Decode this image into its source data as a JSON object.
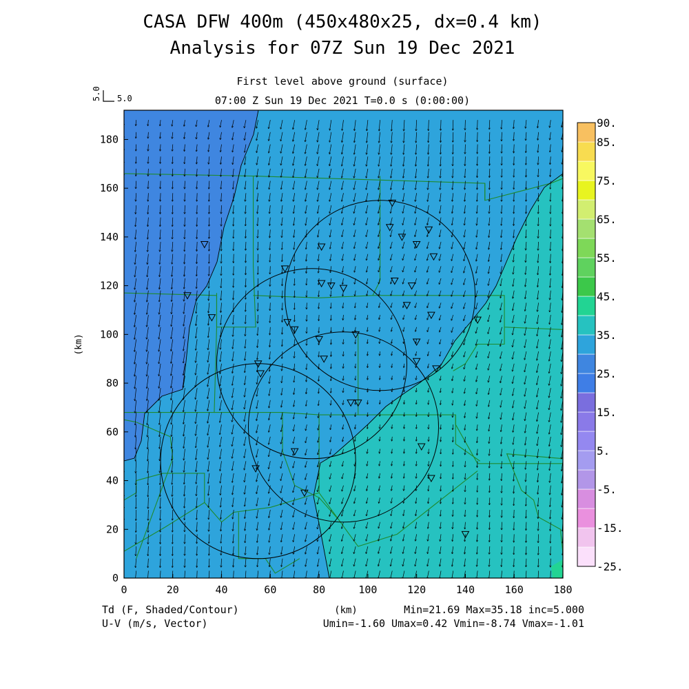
{
  "header": {
    "title_line1": "CASA DFW 400m (450x480x25, dx=0.4 km)",
    "title_line2": "Analysis for 07Z Sun 19 Dec 2021",
    "level_label": "First level above ground (surface)",
    "time_label": "07:00 Z Sun 19 Dec 2021    T=0.0 s (0:00:00)",
    "vector_scale_rotated": "5.0",
    "vector_scale_label": "5.0"
  },
  "footer": {
    "field_label": "Td (F, Shaded/Contour)",
    "vector_label": "U-V (m/s, Vector)",
    "x_unit": "(km)",
    "stats_line1": "Min=21.69 Max=35.18 inc=5.000",
    "stats_line2": "Umin=-1.60 Umax=0.42 Vmin=-8.74 Vmax=-1.01"
  },
  "colors": {
    "band_20_25": "#3f86e0",
    "band_25_30": "#2ea4dc",
    "band_30_35": "#26c2c0",
    "band_35_40": "#22d493",
    "boundary": "#1f8a2c",
    "contour": "#000000"
  },
  "chart_data": {
    "type": "heatmap",
    "variable": "Td (F)",
    "xlabel": "(km)",
    "ylabel": "(km)",
    "xlim": [
      0,
      180
    ],
    "ylim": [
      0,
      192
    ],
    "x_ticks": [
      "0",
      "20",
      "40",
      "60",
      "80",
      "100",
      "120",
      "140",
      "160",
      "180"
    ],
    "y_ticks": [
      "0",
      "20",
      "40",
      "60",
      "80",
      "100",
      "120",
      "140",
      "160",
      "180"
    ],
    "colorbar": {
      "labels": [
        "90.",
        "85.",
        "75.",
        "65.",
        "55.",
        "45.",
        "35.",
        "25.",
        "15.",
        "5.",
        "-5.",
        "-15.",
        "-25."
      ],
      "label_values": [
        90,
        85,
        75,
        65,
        55,
        45,
        35,
        25,
        15,
        5,
        -5,
        -15,
        -25
      ],
      "levels": [
        -25,
        -20,
        -15,
        -10,
        -5,
        0,
        5,
        10,
        15,
        20,
        25,
        30,
        35,
        40,
        45,
        50,
        55,
        60,
        65,
        70,
        75,
        80,
        85,
        90
      ],
      "colors": [
        "#fbe0fb",
        "#f1c4ee",
        "#ea90de",
        "#d88ee0",
        "#b296e8",
        "#a49cf0",
        "#9488f0",
        "#8a7ae8",
        "#7a6ede",
        "#3f7ee6",
        "#3f86e0",
        "#2ea4dc",
        "#26c2c0",
        "#22d493",
        "#3cc84a",
        "#5fd25e",
        "#7ed858",
        "#a4e070",
        "#d2ee70",
        "#e8f420",
        "#f8f860",
        "#f8dc50",
        "#f8c060",
        "#f8a050"
      ]
    },
    "min": 21.69,
    "max": 35.18,
    "contour_interval": 5.0,
    "vector_field": {
      "variable": "U-V (m/s)",
      "umin": -1.6,
      "umax": 0.42,
      "vmin": -8.74,
      "vmax": -1.01,
      "reference_vector": 5.0
    },
    "radar_range_rings": [
      {
        "center": [
          105,
          116
        ],
        "radius": 39
      },
      {
        "center": [
          77,
          88
        ],
        "radius": 39
      },
      {
        "center": [
          90,
          62
        ],
        "radius": 39
      },
      {
        "center": [
          55,
          48
        ],
        "radius": 40
      }
    ],
    "station_markers": [
      [
        33,
        137
      ],
      [
        26,
        116
      ],
      [
        36,
        107
      ],
      [
        66,
        127
      ],
      [
        81,
        136
      ],
      [
        81,
        121
      ],
      [
        85,
        120
      ],
      [
        90,
        119
      ],
      [
        110,
        154
      ],
      [
        109,
        144
      ],
      [
        114,
        140
      ],
      [
        125,
        143
      ],
      [
        120,
        137
      ],
      [
        127,
        132
      ],
      [
        111,
        122
      ],
      [
        118,
        120
      ],
      [
        116,
        112
      ],
      [
        67,
        105
      ],
      [
        70,
        102
      ],
      [
        80,
        98
      ],
      [
        82,
        90
      ],
      [
        126,
        108
      ],
      [
        120,
        97
      ],
      [
        120,
        89
      ],
      [
        128,
        86
      ],
      [
        95,
        100
      ],
      [
        55,
        88
      ],
      [
        56,
        84
      ],
      [
        93,
        72
      ],
      [
        96,
        72
      ],
      [
        122,
        54
      ],
      [
        70,
        52
      ],
      [
        54,
        45
      ],
      [
        74,
        35
      ],
      [
        126,
        41
      ],
      [
        140,
        18
      ],
      [
        145,
        106
      ]
    ]
  }
}
